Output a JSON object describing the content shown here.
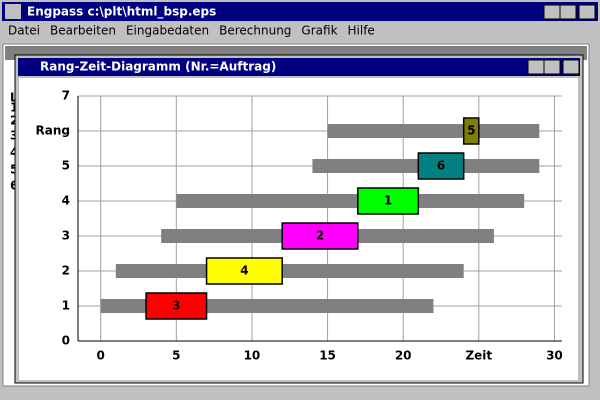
{
  "window": {
    "title": "Engpass  c:\\plt\\html_bsp.eps",
    "menu": [
      "Datei",
      "Bearbeiten",
      "Eingabedaten",
      "Berechnung",
      "Grafik",
      "Hilfe"
    ]
  },
  "background_window": {
    "lines": [
      "L",
      "1",
      "2",
      "3",
      "4",
      "5",
      "6"
    ]
  },
  "chart_data": {
    "type": "gantt",
    "title": "Rang-Zeit-Diagramm (Nr.=Auftrag)",
    "xlim": [
      -1.5,
      30.5
    ],
    "ylim": [
      0,
      7
    ],
    "xticks": [
      0,
      5,
      10,
      15,
      20,
      {
        "value": 25,
        "label": "Zeit"
      },
      30
    ],
    "yticks": [
      0,
      1,
      2,
      3,
      4,
      5,
      {
        "value": 6,
        "label": "Rang"
      },
      7
    ],
    "grid": true,
    "window_color": "#808080",
    "windows": [
      {
        "row": 1,
        "start": 0,
        "end": 22
      },
      {
        "row": 2,
        "start": 1,
        "end": 24
      },
      {
        "row": 3,
        "start": 4,
        "end": 26
      },
      {
        "row": 4,
        "start": 5,
        "end": 28
      },
      {
        "row": 5,
        "start": 14,
        "end": 29
      },
      {
        "row": 6,
        "start": 15,
        "end": 29
      }
    ],
    "tasks": [
      {
        "row": 1,
        "start": 3,
        "end": 7,
        "label": "3",
        "color": "#ff0000"
      },
      {
        "row": 2,
        "start": 7,
        "end": 12,
        "label": "4",
        "color": "#ffff00"
      },
      {
        "row": 3,
        "start": 12,
        "end": 17,
        "label": "2",
        "color": "#ff00ff"
      },
      {
        "row": 4,
        "start": 17,
        "end": 21,
        "label": "1",
        "color": "#00ff00"
      },
      {
        "row": 5,
        "start": 21,
        "end": 24,
        "label": "6",
        "color": "#008080"
      },
      {
        "row": 6,
        "start": 24,
        "end": 25,
        "label": "5",
        "color": "#808000"
      }
    ]
  }
}
